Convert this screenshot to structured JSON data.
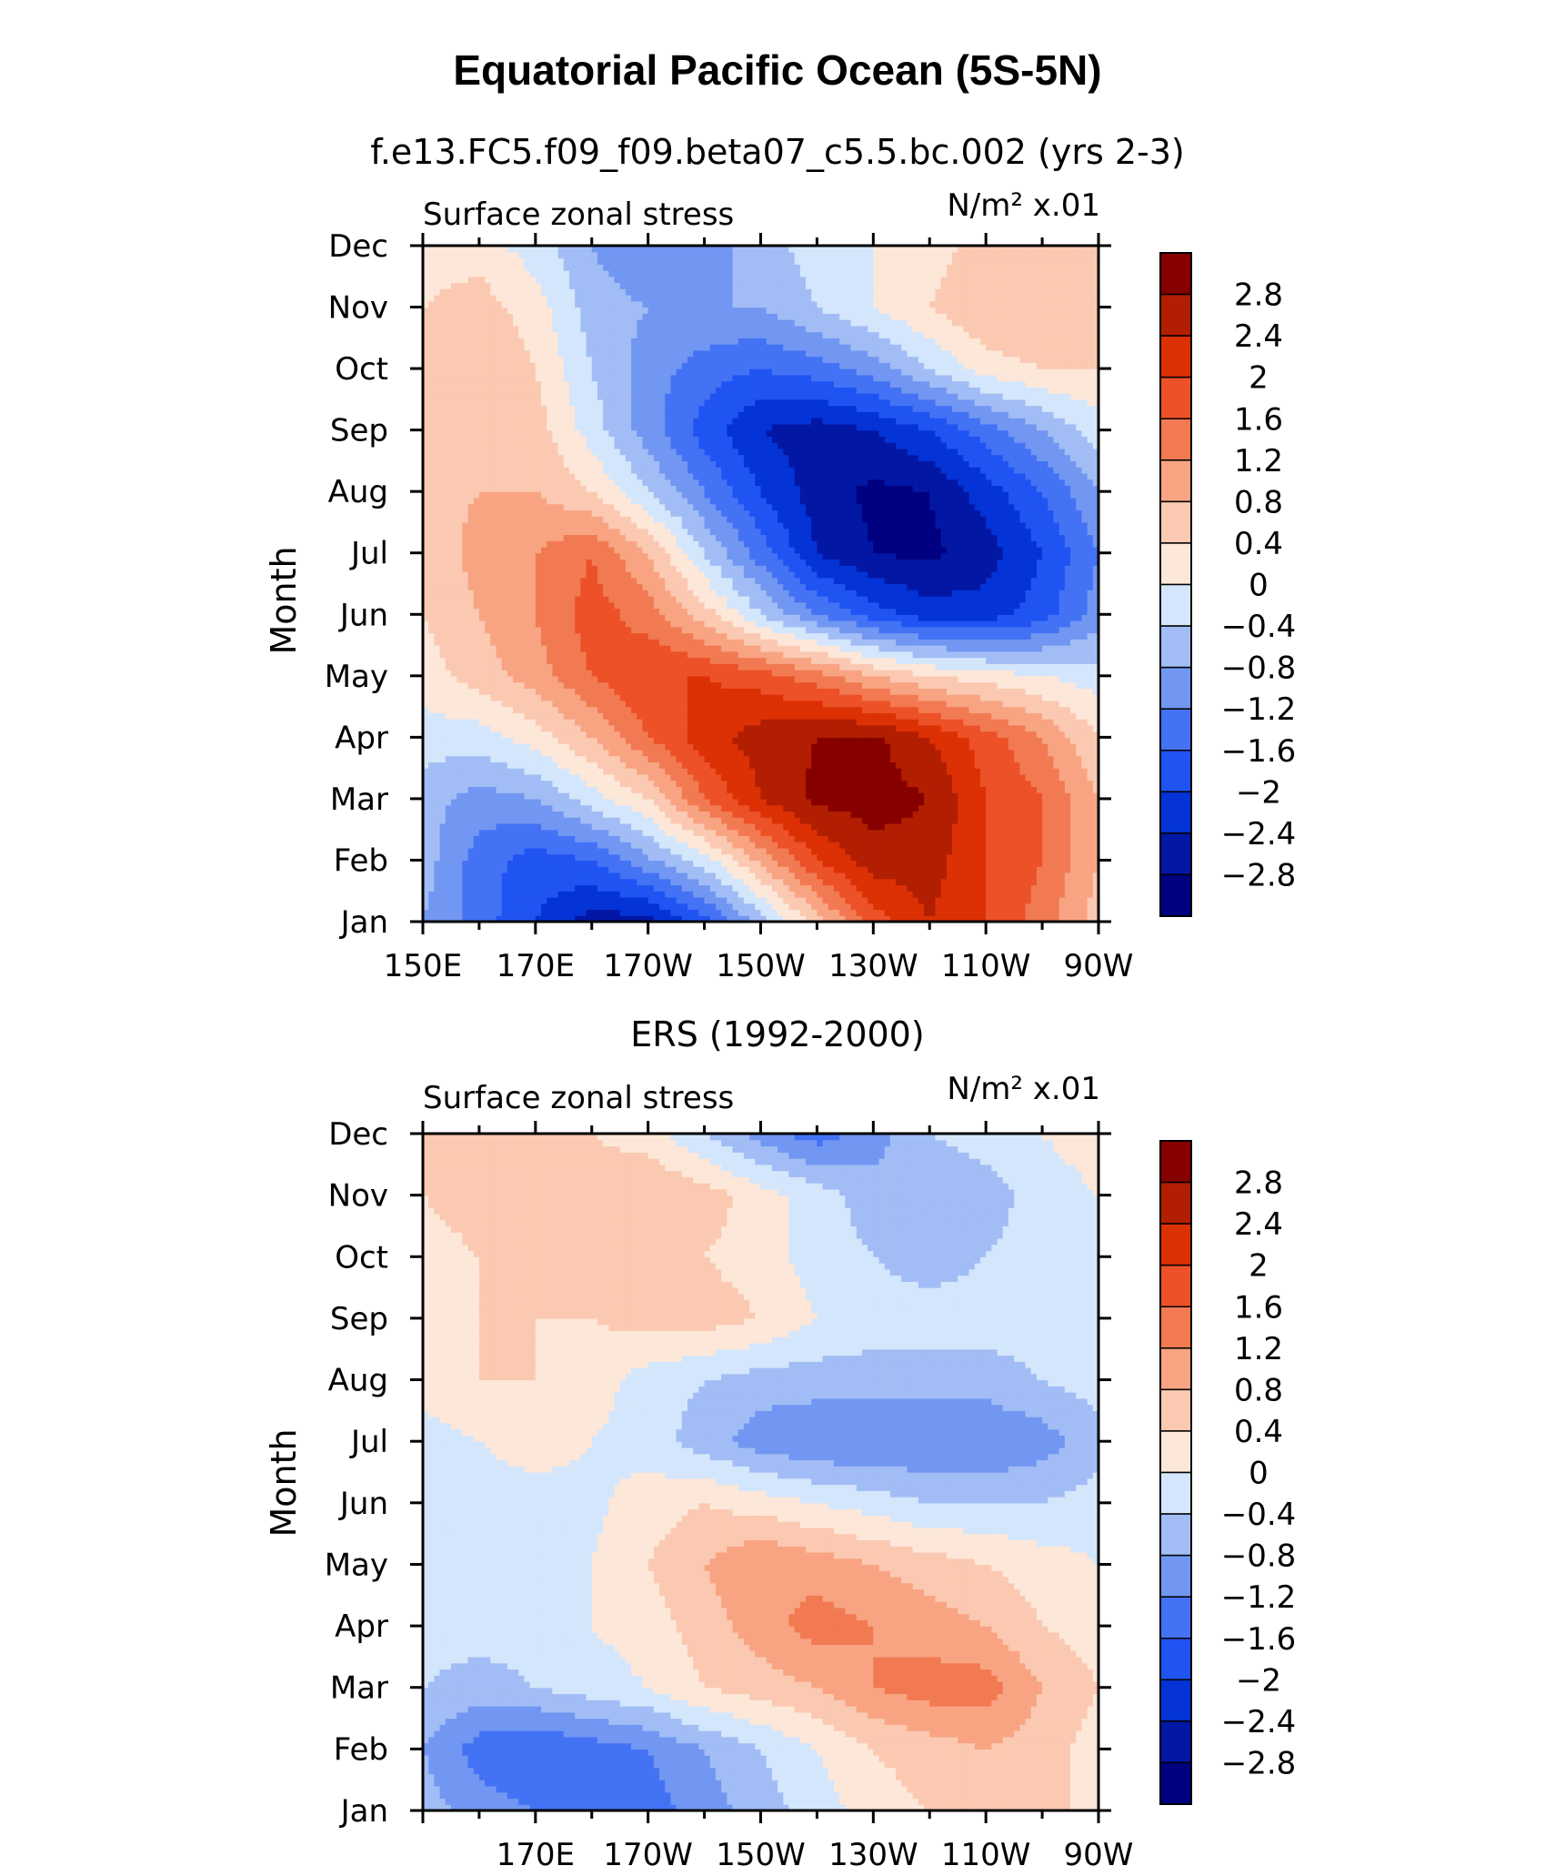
{
  "figure": {
    "title": "Equatorial Pacific Ocean (5S-5N)"
  },
  "chart_data": [
    {
      "type": "heatmap",
      "title": "f.e13.FC5.f09_f09.beta07_c5.5.bc.002 (yrs 2-3)",
      "left_label": "Surface zonal stress",
      "right_label": "N/m² x.01",
      "ylabel": "Month",
      "xlabel": "",
      "x_ticks": [
        "150E",
        "170E",
        "170W",
        "150W",
        "130W",
        "110W",
        "90W"
      ],
      "x_tick_lon": [
        150,
        170,
        190,
        210,
        230,
        250,
        270
      ],
      "y_ticks": [
        "Jan",
        "Feb",
        "Mar",
        "Apr",
        "May",
        "Jun",
        "Jul",
        "Aug",
        "Sep",
        "Oct",
        "Nov",
        "Dec"
      ],
      "xlim_lon": [
        150,
        270
      ],
      "ylim_month": [
        1,
        12
      ],
      "colorbar_levels": [
        -2.8,
        -2.4,
        -2,
        -1.6,
        -1.2,
        -0.8,
        -0.4,
        0,
        0.4,
        0.8,
        1.2,
        1.6,
        2,
        2.4,
        2.8
      ],
      "colorbar_labels": [
        "2.8",
        "2.4",
        "2",
        "1.6",
        "1.2",
        "0.8",
        "0.4",
        "0",
        "−0.4",
        "−0.8",
        "−1.2",
        "−1.6",
        "−2",
        "−2.4",
        "−2.8"
      ],
      "lon_grid": [
        150,
        160,
        170,
        180,
        190,
        200,
        210,
        220,
        230,
        240,
        250,
        260,
        270
      ],
      "z_approx": [
        [
          -0.8,
          -1.4,
          -2.0,
          -2.6,
          -2.6,
          -1.8,
          -0.6,
          0.6,
          1.8,
          2.4,
          2.0,
          1.4,
          0.6
        ],
        [
          -0.6,
          -1.4,
          -1.8,
          -1.6,
          -0.9,
          -0.2,
          0.9,
          2.0,
          2.6,
          2.6,
          2.0,
          1.6,
          0.8
        ],
        [
          -0.6,
          -1.0,
          -0.8,
          -0.2,
          0.4,
          1.6,
          2.4,
          2.9,
          3.0,
          2.8,
          2.0,
          1.6,
          0.8
        ],
        [
          -0.2,
          -0.2,
          0.2,
          0.8,
          1.6,
          2.2,
          2.6,
          2.8,
          2.9,
          2.4,
          1.8,
          1.2,
          0.4
        ],
        [
          0.2,
          0.6,
          1.0,
          1.6,
          2.0,
          2.0,
          1.8,
          1.4,
          0.8,
          0.4,
          0.2,
          0.0,
          -0.2
        ],
        [
          0.4,
          0.8,
          1.2,
          1.8,
          1.4,
          0.6,
          -0.4,
          -1.2,
          -1.8,
          -2.2,
          -2.2,
          -1.8,
          -1.0
        ],
        [
          0.4,
          1.0,
          1.2,
          1.6,
          0.8,
          -0.4,
          -1.4,
          -2.4,
          -2.8,
          -2.9,
          -2.6,
          -2.0,
          -1.2
        ],
        [
          0.6,
          0.8,
          0.8,
          0.4,
          -0.4,
          -1.2,
          -2.0,
          -2.6,
          -2.9,
          -2.8,
          -2.2,
          -1.6,
          -0.8
        ],
        [
          0.6,
          0.8,
          0.6,
          -0.2,
          -1.0,
          -1.8,
          -2.4,
          -2.6,
          -2.4,
          -2.0,
          -1.4,
          -0.8,
          -0.2
        ],
        [
          0.6,
          0.8,
          0.4,
          -0.4,
          -1.0,
          -1.4,
          -1.6,
          -1.4,
          -1.0,
          -0.4,
          0.2,
          0.4,
          0.4
        ],
        [
          0.4,
          0.6,
          0.2,
          -0.6,
          -0.8,
          -0.8,
          -0.8,
          -0.4,
          0.0,
          0.4,
          0.8,
          0.8,
          0.8
        ],
        [
          0.2,
          0.2,
          -0.2,
          -0.8,
          -1.2,
          -1.0,
          -0.6,
          -0.2,
          0.0,
          0.2,
          0.6,
          0.8,
          0.6
        ]
      ]
    },
    {
      "type": "heatmap",
      "title": "ERS (1992-2000)",
      "left_label": "Surface zonal stress",
      "right_label": "N/m² x.01",
      "ylabel": "Month",
      "xlabel": "",
      "x_ticks": [
        "170E",
        "170W",
        "150W",
        "130W",
        "110W",
        "90W"
      ],
      "x_tick_lon": [
        170,
        190,
        210,
        230,
        250,
        270
      ],
      "y_ticks": [
        "Jan",
        "Feb",
        "Mar",
        "Apr",
        "May",
        "Jun",
        "Jul",
        "Aug",
        "Sep",
        "Oct",
        "Nov",
        "Dec"
      ],
      "xlim_lon": [
        150,
        270
      ],
      "ylim_month": [
        1,
        12
      ],
      "colorbar_levels": [
        -2.8,
        -2.4,
        -2,
        -1.6,
        -1.2,
        -0.8,
        -0.4,
        0,
        0.4,
        0.8,
        1.2,
        1.6,
        2,
        2.4,
        2.8
      ],
      "colorbar_labels": [
        "2.8",
        "2.4",
        "2",
        "1.6",
        "1.2",
        "0.8",
        "0.4",
        "0",
        "−0.4",
        "−0.8",
        "−1.2",
        "−1.6",
        "−2",
        "−2.4",
        "−2.8"
      ],
      "lon_grid": [
        150,
        160,
        170,
        180,
        190,
        200,
        210,
        220,
        230,
        240,
        250,
        260,
        270
      ],
      "z_approx": [
        [
          -0.6,
          -1.0,
          -1.2,
          -1.4,
          -1.4,
          -1.0,
          -0.6,
          -0.2,
          0.2,
          0.4,
          0.6,
          0.6,
          0.2
        ],
        [
          -0.8,
          -1.4,
          -1.6,
          -1.4,
          -1.2,
          -0.8,
          -0.4,
          0.0,
          0.4,
          0.6,
          0.8,
          0.6,
          0.2
        ],
        [
          -0.4,
          -0.6,
          -0.4,
          -0.2,
          0.0,
          0.4,
          0.6,
          0.8,
          1.2,
          1.4,
          1.4,
          0.8,
          0.4
        ],
        [
          -0.2,
          -0.2,
          -0.2,
          0.0,
          0.2,
          0.6,
          1.0,
          1.4,
          1.2,
          1.0,
          0.8,
          0.4,
          0.2
        ],
        [
          -0.2,
          -0.2,
          -0.2,
          0.0,
          0.4,
          0.8,
          1.2,
          1.0,
          0.8,
          0.6,
          0.4,
          0.2,
          0.0
        ],
        [
          -0.4,
          -0.2,
          -0.2,
          -0.1,
          0.2,
          0.4,
          0.2,
          0.0,
          -0.2,
          -0.4,
          -0.4,
          -0.4,
          -0.2
        ],
        [
          -0.2,
          0.0,
          0.2,
          0.0,
          -0.2,
          -0.6,
          -1.0,
          -1.2,
          -1.2,
          -1.2,
          -1.2,
          -1.0,
          -0.6
        ],
        [
          0.2,
          0.4,
          0.4,
          0.2,
          -0.2,
          -0.4,
          -0.6,
          -0.6,
          -0.6,
          -0.6,
          -0.6,
          -0.4,
          -0.2
        ],
        [
          0.2,
          0.4,
          0.4,
          0.4,
          0.6,
          0.6,
          0.4,
          0.0,
          -0.2,
          -0.2,
          -0.2,
          -0.2,
          0.0
        ],
        [
          0.2,
          0.4,
          0.4,
          0.4,
          0.6,
          0.4,
          0.2,
          -0.2,
          -0.4,
          -0.6,
          -0.4,
          -0.2,
          0.0
        ],
        [
          0.4,
          0.6,
          0.6,
          0.6,
          0.8,
          0.6,
          0.2,
          -0.2,
          -0.6,
          -0.8,
          -0.6,
          -0.2,
          0.0
        ],
        [
          0.4,
          0.6,
          0.6,
          0.4,
          0.2,
          -0.4,
          -1.0,
          -1.4,
          -1.0,
          -0.4,
          -0.2,
          0.0,
          0.2
        ]
      ]
    }
  ],
  "colors": {
    "palette": [
      "#000080",
      "#0317a5",
      "#0433d6",
      "#1f54f2",
      "#4472f5",
      "#7297f2",
      "#a2bdf5",
      "#d4e6fb",
      "#fde7d9",
      "#fbc9b1",
      "#f8a483",
      "#f27a52",
      "#ec5128",
      "#dc3005",
      "#b11e01",
      "#870000"
    ]
  }
}
